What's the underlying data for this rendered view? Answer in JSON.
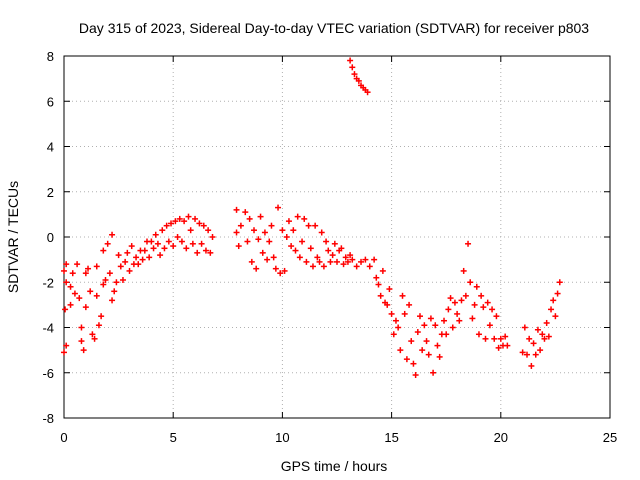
{
  "chart_data": {
    "type": "scatter",
    "title": "Day 315 of 2023, Sidereal Day-to-day VTEC variation (SDTVAR) for receiver p803",
    "xlabel": "GPS time / hours",
    "ylabel": "SDTVAR / TECUs",
    "xlim": [
      0,
      25
    ],
    "ylim": [
      -8,
      8
    ],
    "xticks": [
      "0",
      "5",
      "10",
      "15",
      "20",
      "25"
    ],
    "yticks": [
      "-8",
      "-6",
      "-4",
      "-2",
      "0",
      "2",
      "4",
      "6",
      "8"
    ],
    "grid": true,
    "marker": "+",
    "color": "#ff0000",
    "series": [
      {
        "name": "SDTVAR",
        "points": [
          [
            0.0,
            -1.5
          ],
          [
            0.1,
            -1.2
          ],
          [
            0.1,
            -2.0
          ],
          [
            0.05,
            -3.2
          ],
          [
            0.1,
            -4.8
          ],
          [
            0.0,
            -5.1
          ],
          [
            0.3,
            -2.2
          ],
          [
            0.3,
            -3.0
          ],
          [
            0.4,
            -1.6
          ],
          [
            0.5,
            -2.5
          ],
          [
            0.6,
            -1.2
          ],
          [
            0.7,
            -2.7
          ],
          [
            0.8,
            -4.0
          ],
          [
            0.8,
            -4.6
          ],
          [
            0.9,
            -5.0
          ],
          [
            1.0,
            -1.6
          ],
          [
            1.0,
            -3.1
          ],
          [
            1.1,
            -1.4
          ],
          [
            1.2,
            -2.4
          ],
          [
            1.3,
            -4.3
          ],
          [
            1.4,
            -4.5
          ],
          [
            1.5,
            -2.6
          ],
          [
            1.5,
            -1.3
          ],
          [
            1.6,
            -3.9
          ],
          [
            1.7,
            -3.5
          ],
          [
            1.8,
            -0.6
          ],
          [
            1.8,
            -2.1
          ],
          [
            1.9,
            -1.9
          ],
          [
            2.0,
            -0.3
          ],
          [
            2.1,
            -1.6
          ],
          [
            2.2,
            -2.8
          ],
          [
            2.2,
            0.1
          ],
          [
            2.3,
            -2.4
          ],
          [
            2.4,
            -2.0
          ],
          [
            2.5,
            -0.8
          ],
          [
            2.6,
            -1.3
          ],
          [
            2.7,
            -1.9
          ],
          [
            2.8,
            -1.1
          ],
          [
            2.9,
            -0.7
          ],
          [
            3.0,
            -1.5
          ],
          [
            3.1,
            -0.4
          ],
          [
            3.2,
            -1.2
          ],
          [
            3.3,
            -0.9
          ],
          [
            3.4,
            -1.2
          ],
          [
            3.5,
            -0.6
          ],
          [
            3.6,
            -1.0
          ],
          [
            3.7,
            -0.6
          ],
          [
            3.8,
            -0.2
          ],
          [
            3.9,
            -0.9
          ],
          [
            4.0,
            -0.2
          ],
          [
            4.1,
            -0.5
          ],
          [
            4.2,
            0.1
          ],
          [
            4.3,
            -0.3
          ],
          [
            4.4,
            -0.8
          ],
          [
            4.5,
            0.3
          ],
          [
            4.6,
            -0.5
          ],
          [
            4.7,
            0.5
          ],
          [
            4.8,
            -0.2
          ],
          [
            4.9,
            0.6
          ],
          [
            5.0,
            -0.4
          ],
          [
            5.1,
            0.7
          ],
          [
            5.2,
            0.0
          ],
          [
            5.3,
            0.8
          ],
          [
            5.4,
            -0.2
          ],
          [
            5.5,
            0.7
          ],
          [
            5.6,
            -0.5
          ],
          [
            5.7,
            0.9
          ],
          [
            5.8,
            0.3
          ],
          [
            5.9,
            -0.3
          ],
          [
            6.0,
            0.8
          ],
          [
            6.1,
            -0.7
          ],
          [
            6.2,
            0.6
          ],
          [
            6.3,
            -0.3
          ],
          [
            6.4,
            0.5
          ],
          [
            6.5,
            -0.6
          ],
          [
            6.6,
            0.3
          ],
          [
            6.7,
            -0.7
          ],
          [
            6.8,
            0.0
          ],
          [
            7.9,
            0.2
          ],
          [
            7.9,
            1.2
          ],
          [
            8.0,
            -0.4
          ],
          [
            8.1,
            0.5
          ],
          [
            8.3,
            1.1
          ],
          [
            8.4,
            -0.2
          ],
          [
            8.5,
            0.8
          ],
          [
            8.6,
            -1.1
          ],
          [
            8.7,
            0.3
          ],
          [
            8.8,
            -1.4
          ],
          [
            8.9,
            -0.1
          ],
          [
            9.0,
            0.9
          ],
          [
            9.1,
            -0.7
          ],
          [
            9.2,
            0.2
          ],
          [
            9.3,
            -1.0
          ],
          [
            9.4,
            -0.2
          ],
          [
            9.5,
            0.5
          ],
          [
            9.6,
            -0.9
          ],
          [
            9.7,
            -1.4
          ],
          [
            9.8,
            1.3
          ],
          [
            9.9,
            -1.6
          ],
          [
            10.0,
            0.3
          ],
          [
            10.1,
            -1.5
          ],
          [
            10.2,
            0.0
          ],
          [
            10.3,
            0.7
          ],
          [
            10.4,
            -0.4
          ],
          [
            10.5,
            0.3
          ],
          [
            10.6,
            -0.6
          ],
          [
            10.7,
            0.9
          ],
          [
            10.8,
            -0.9
          ],
          [
            10.9,
            -0.2
          ],
          [
            11.0,
            0.8
          ],
          [
            11.1,
            -1.1
          ],
          [
            11.2,
            0.5
          ],
          [
            11.3,
            -0.5
          ],
          [
            11.4,
            -1.3
          ],
          [
            11.5,
            0.5
          ],
          [
            11.6,
            -0.9
          ],
          [
            11.7,
            -1.1
          ],
          [
            11.8,
            0.2
          ],
          [
            11.9,
            -1.3
          ],
          [
            12.0,
            -0.2
          ],
          [
            12.1,
            -0.6
          ],
          [
            12.2,
            -1.1
          ],
          [
            12.3,
            -0.8
          ],
          [
            12.4,
            -0.3
          ],
          [
            12.5,
            -1.1
          ],
          [
            12.6,
            -0.6
          ],
          [
            12.7,
            -0.5
          ],
          [
            12.8,
            -1.2
          ],
          [
            12.9,
            -0.9
          ],
          [
            13.0,
            -1.1
          ],
          [
            13.1,
            -0.8
          ],
          [
            13.2,
            -1.0
          ],
          [
            13.1,
            7.8
          ],
          [
            13.2,
            7.5
          ],
          [
            13.3,
            7.2
          ],
          [
            13.4,
            7.0
          ],
          [
            13.5,
            6.9
          ],
          [
            13.6,
            6.7
          ],
          [
            13.7,
            6.6
          ],
          [
            13.8,
            6.5
          ],
          [
            13.9,
            6.4
          ],
          [
            13.4,
            -1.3
          ],
          [
            13.6,
            -1.1
          ],
          [
            13.8,
            -1.0
          ],
          [
            14.0,
            -1.3
          ],
          [
            14.2,
            -1.0
          ],
          [
            14.3,
            -1.8
          ],
          [
            14.4,
            -2.1
          ],
          [
            14.5,
            -2.6
          ],
          [
            14.6,
            -1.5
          ],
          [
            14.7,
            -2.9
          ],
          [
            14.8,
            -3.0
          ],
          [
            14.9,
            -2.3
          ],
          [
            15.0,
            -3.4
          ],
          [
            15.1,
            -4.3
          ],
          [
            15.2,
            -3.7
          ],
          [
            15.3,
            -4.0
          ],
          [
            15.4,
            -5.0
          ],
          [
            15.5,
            -2.6
          ],
          [
            15.6,
            -3.4
          ],
          [
            15.7,
            -5.4
          ],
          [
            15.8,
            -3.0
          ],
          [
            15.9,
            -4.6
          ],
          [
            16.0,
            -5.6
          ],
          [
            16.1,
            -6.1
          ],
          [
            16.2,
            -4.2
          ],
          [
            16.3,
            -3.5
          ],
          [
            16.4,
            -5.0
          ],
          [
            16.5,
            -3.9
          ],
          [
            16.6,
            -4.6
          ],
          [
            16.7,
            -5.2
          ],
          [
            16.8,
            -3.6
          ],
          [
            16.9,
            -6.0
          ],
          [
            17.0,
            -3.9
          ],
          [
            17.1,
            -4.8
          ],
          [
            17.2,
            -5.3
          ],
          [
            17.3,
            -4.3
          ],
          [
            17.4,
            -3.7
          ],
          [
            17.5,
            -4.3
          ],
          [
            17.6,
            -3.2
          ],
          [
            17.7,
            -2.7
          ],
          [
            17.8,
            -4.0
          ],
          [
            17.9,
            -2.9
          ],
          [
            18.0,
            -3.4
          ],
          [
            18.1,
            -3.7
          ],
          [
            18.2,
            -2.8
          ],
          [
            18.3,
            -1.5
          ],
          [
            18.4,
            -2.6
          ],
          [
            18.5,
            -0.3
          ],
          [
            18.6,
            -2.0
          ],
          [
            18.7,
            -3.6
          ],
          [
            18.8,
            -3.0
          ],
          [
            18.9,
            -2.2
          ],
          [
            19.0,
            -4.3
          ],
          [
            19.1,
            -2.6
          ],
          [
            19.2,
            -3.1
          ],
          [
            19.3,
            -4.5
          ],
          [
            19.4,
            -2.9
          ],
          [
            19.5,
            -3.9
          ],
          [
            19.6,
            -3.2
          ],
          [
            19.7,
            -4.5
          ],
          [
            19.8,
            -3.5
          ],
          [
            19.9,
            -4.9
          ],
          [
            20.0,
            -4.5
          ],
          [
            20.1,
            -4.8
          ],
          [
            20.2,
            -4.4
          ],
          [
            20.3,
            -4.8
          ],
          [
            21.0,
            -5.1
          ],
          [
            21.1,
            -4.0
          ],
          [
            21.2,
            -5.2
          ],
          [
            21.3,
            -4.5
          ],
          [
            21.4,
            -5.7
          ],
          [
            21.5,
            -4.7
          ],
          [
            21.6,
            -5.2
          ],
          [
            21.7,
            -4.1
          ],
          [
            21.8,
            -5.0
          ],
          [
            21.9,
            -4.3
          ],
          [
            22.0,
            -4.5
          ],
          [
            22.1,
            -3.8
          ],
          [
            22.2,
            -4.4
          ],
          [
            22.3,
            -3.2
          ],
          [
            22.4,
            -2.8
          ],
          [
            22.5,
            -3.5
          ],
          [
            22.6,
            -2.5
          ],
          [
            22.7,
            -2.0
          ]
        ]
      }
    ]
  }
}
